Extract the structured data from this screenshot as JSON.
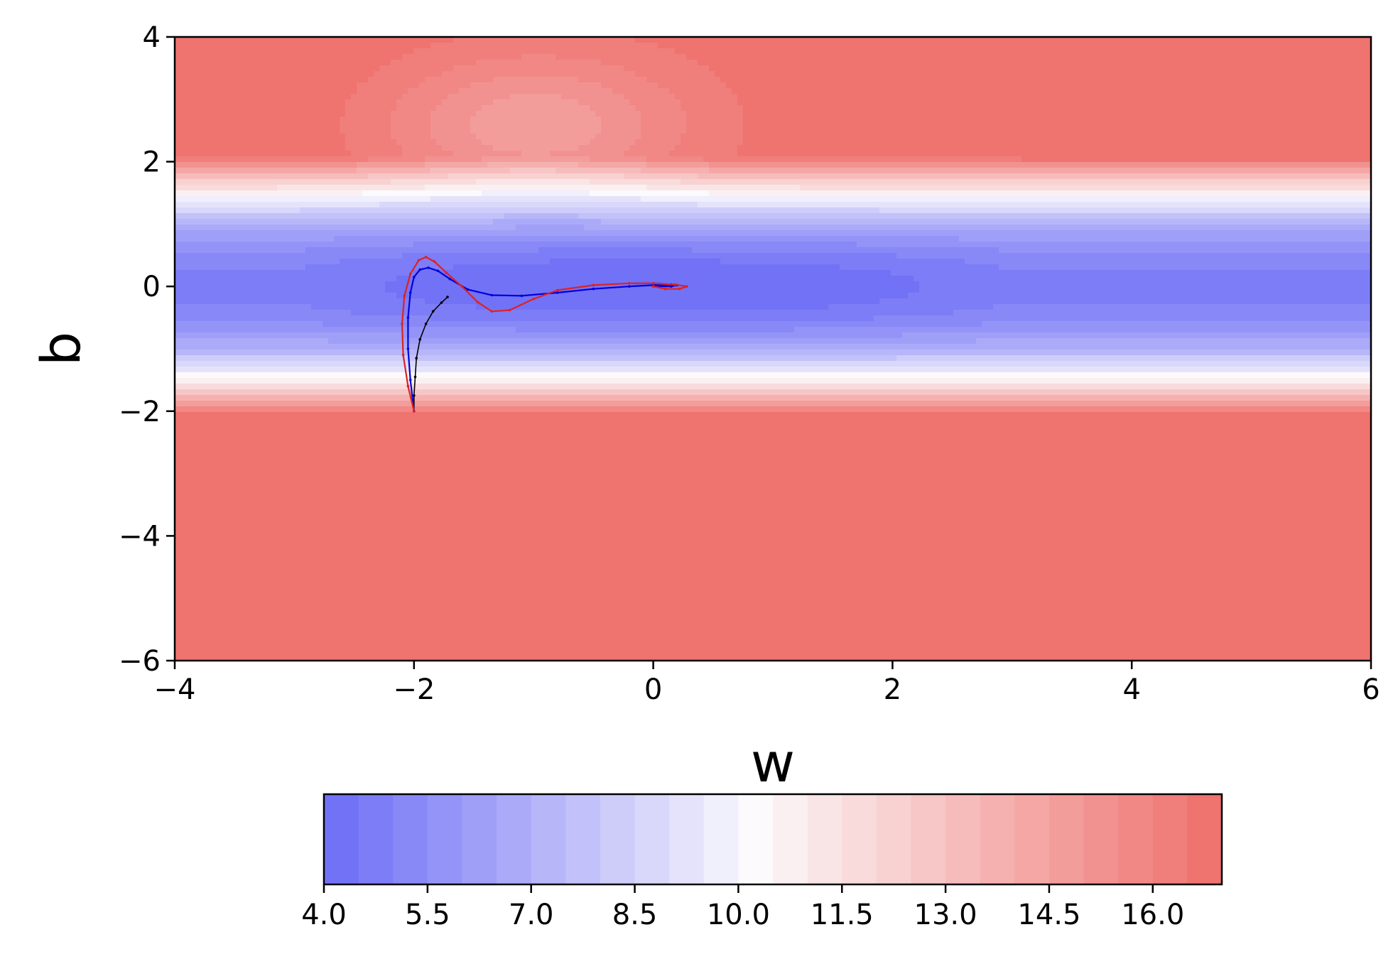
{
  "chart_data": {
    "type": "contour",
    "title": "",
    "xlabel": "w",
    "ylabel": "b",
    "xlim": [
      -4,
      6
    ],
    "ylim": [
      -6,
      4
    ],
    "xticks": [
      -4,
      -2,
      0,
      2,
      4,
      6
    ],
    "yticks": [
      -6,
      -4,
      -2,
      0,
      2,
      4
    ],
    "xtick_labels": [
      "−4",
      "−2",
      "0",
      "2",
      "4",
      "6"
    ],
    "ytick_labels": [
      "−6",
      "−4",
      "−2",
      "0",
      "2",
      "4"
    ],
    "colormap": "bwr",
    "colorbar": {
      "orientation": "horizontal",
      "range": [
        4.0,
        17.0
      ],
      "levels": [
        4.0,
        4.5,
        5.0,
        5.5,
        6.0,
        6.5,
        7.0,
        7.5,
        8.0,
        8.5,
        9.0,
        9.5,
        10.0,
        10.5,
        11.0,
        11.5,
        12.0,
        12.5,
        13.0,
        13.5,
        14.0,
        14.5,
        15.0,
        15.5,
        16.0,
        16.5,
        17.0
      ],
      "ticks": [
        4.0,
        5.5,
        7.0,
        8.5,
        10.0,
        11.5,
        13.0,
        14.5,
        16.0
      ],
      "tick_labels": [
        "4.0",
        "5.5",
        "7.0",
        "8.5",
        "10.0",
        "11.5",
        "13.0",
        "14.5",
        "16.0"
      ]
    },
    "minimum": {
      "w": 0.0,
      "b": 0.0
    },
    "trajectories": [
      {
        "color": "#000000",
        "points": [
          [
            -2.0,
            -2.0
          ],
          [
            -2.0,
            -1.75
          ],
          [
            -1.99,
            -1.45
          ],
          [
            -1.98,
            -1.15
          ],
          [
            -1.95,
            -0.85
          ],
          [
            -1.9,
            -0.6
          ],
          [
            -1.84,
            -0.4
          ],
          [
            -1.77,
            -0.26
          ],
          [
            -1.72,
            -0.17
          ]
        ]
      },
      {
        "color": "#0000dd",
        "points": [
          [
            -2.0,
            -2.0
          ],
          [
            -2.03,
            -1.5
          ],
          [
            -2.05,
            -1.0
          ],
          [
            -2.05,
            -0.5
          ],
          [
            -2.03,
            -0.1
          ],
          [
            -2.0,
            0.15
          ],
          [
            -1.95,
            0.27
          ],
          [
            -1.88,
            0.3
          ],
          [
            -1.8,
            0.25
          ],
          [
            -1.7,
            0.12
          ],
          [
            -1.55,
            -0.05
          ],
          [
            -1.35,
            -0.14
          ],
          [
            -1.1,
            -0.15
          ],
          [
            -0.8,
            -0.1
          ],
          [
            -0.5,
            -0.04
          ],
          [
            -0.2,
            0.0
          ],
          [
            0.0,
            0.02
          ],
          [
            0.15,
            0.03
          ],
          [
            0.2,
            0.02
          ],
          [
            0.15,
            0.0
          ],
          [
            0.05,
            0.0
          ],
          [
            0.0,
            0.0
          ]
        ]
      },
      {
        "color": "#dd2222",
        "points": [
          [
            -2.0,
            -2.0
          ],
          [
            -2.05,
            -1.6
          ],
          [
            -2.09,
            -1.1
          ],
          [
            -2.1,
            -0.6
          ],
          [
            -2.08,
            -0.15
          ],
          [
            -2.03,
            0.2
          ],
          [
            -1.96,
            0.42
          ],
          [
            -1.9,
            0.47
          ],
          [
            -1.83,
            0.4
          ],
          [
            -1.73,
            0.22
          ],
          [
            -1.6,
            0.0
          ],
          [
            -1.47,
            -0.25
          ],
          [
            -1.35,
            -0.4
          ],
          [
            -1.2,
            -0.38
          ],
          [
            -1.0,
            -0.2
          ],
          [
            -0.8,
            -0.06
          ],
          [
            -0.5,
            0.02
          ],
          [
            -0.2,
            0.05
          ],
          [
            0.0,
            0.05
          ],
          [
            0.18,
            0.03
          ],
          [
            0.28,
            0.0
          ],
          [
            0.22,
            -0.04
          ],
          [
            0.1,
            -0.04
          ],
          [
            0.0,
            0.0
          ]
        ]
      }
    ]
  }
}
